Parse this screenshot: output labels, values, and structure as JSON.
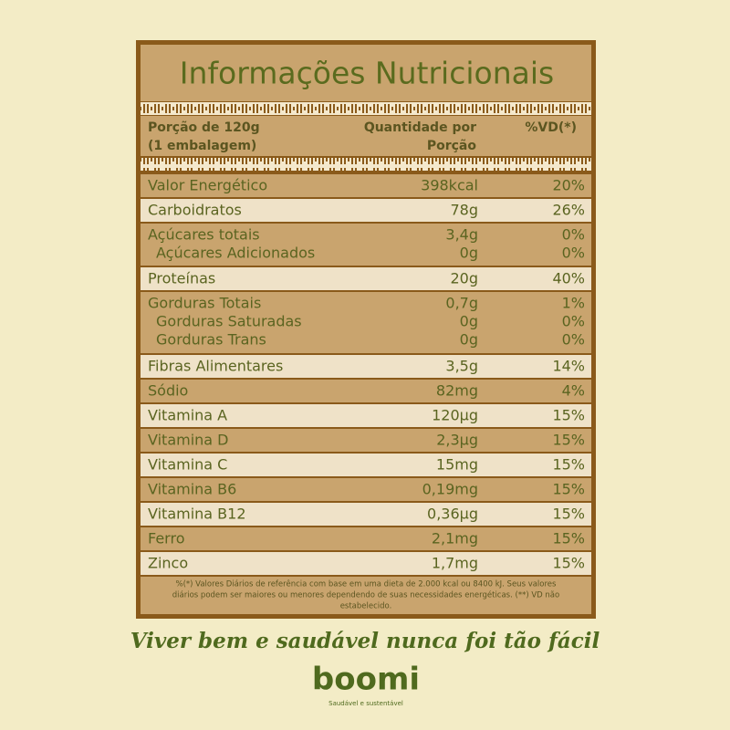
{
  "title": "Informações Nutricionais",
  "header": {
    "portion": [
      "Porção de 120g",
      "(1 embalagem)"
    ],
    "amount": [
      "Quantidade por",
      "Porção"
    ],
    "dv": "%VD(*)"
  },
  "rows": [
    {
      "items": [
        {
          "name": "Valor Energético",
          "amount": "398kcal",
          "dv": "20%"
        }
      ]
    },
    {
      "items": [
        {
          "name": "Carboidratos",
          "amount": "78g",
          "dv": "26%"
        }
      ]
    },
    {
      "items": [
        {
          "name": "Açúcares totais",
          "amount": "3,4g",
          "dv": "0%"
        },
        {
          "name": "Açúcares Adicionados",
          "amount": "0g",
          "dv": "0%"
        }
      ]
    },
    {
      "items": [
        {
          "name": "Proteínas",
          "amount": "20g",
          "dv": "40%"
        }
      ]
    },
    {
      "items": [
        {
          "name": "Gorduras Totais",
          "amount": "0,7g",
          "dv": "1%"
        },
        {
          "name": "Gorduras Saturadas",
          "amount": "0g",
          "dv": "0%"
        },
        {
          "name": "Gorduras Trans",
          "amount": "0g",
          "dv": "0%"
        }
      ]
    },
    {
      "items": [
        {
          "name": "Fibras Alimentares",
          "amount": "3,5g",
          "dv": "14%"
        }
      ]
    },
    {
      "items": [
        {
          "name": "Sódio",
          "amount": "82mg",
          "dv": "4%"
        }
      ]
    },
    {
      "items": [
        {
          "name": "Vitamina A",
          "amount": "120µg",
          "dv": "15%"
        }
      ]
    },
    {
      "items": [
        {
          "name": "Vitamina D",
          "amount": "2,3µg",
          "dv": "15%"
        }
      ]
    },
    {
      "items": [
        {
          "name": "Vitamina C",
          "amount": "15mg",
          "dv": "15%"
        }
      ]
    },
    {
      "items": [
        {
          "name": "Vitamina B6",
          "amount": "0,19mg",
          "dv": "15%"
        }
      ]
    },
    {
      "items": [
        {
          "name": "Vitamina B12",
          "amount": "0,36µg",
          "dv": "15%"
        }
      ]
    },
    {
      "items": [
        {
          "name": "Ferro",
          "amount": "2,1mg",
          "dv": "15%"
        }
      ]
    },
    {
      "items": [
        {
          "name": "Zinco",
          "amount": "1,7mg",
          "dv": "15%"
        }
      ]
    }
  ],
  "footnote": [
    "%(*) Valores Diários de referência com base em uma dieta de 2.000 kcal ou 8400 kJ. Seus valores",
    "diários podem ser maiores ou menores dependendo de suas necessidades energéticas. (**) VD não",
    "estabelecido."
  ],
  "slogan": "Viver bem e saudável nunca foi tão fácil",
  "brand": {
    "logo": "boomi",
    "tagline": "Saudável e sustentável"
  }
}
